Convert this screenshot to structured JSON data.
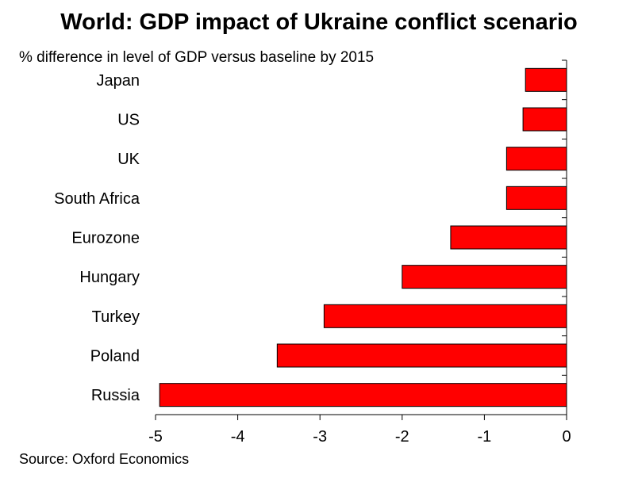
{
  "title": "World: GDP impact of Ukraine conflict scenario",
  "subtitle": "% difference in level of GDP versus baseline by 2015",
  "source": "Source: Oxford Economics",
  "colors": {
    "bar": "#ff0000",
    "bar_stroke": "#000000"
  },
  "chart_data": {
    "type": "bar",
    "orientation": "horizontal",
    "title": "World: GDP impact of Ukraine conflict scenario",
    "subtitle": "% difference in level of GDP versus baseline by 2015",
    "categories": [
      "Japan",
      "US",
      "UK",
      "South Africa",
      "Eurozone",
      "Hungary",
      "Turkey",
      "Poland",
      "Russia"
    ],
    "values": [
      -0.5,
      -0.53,
      -0.73,
      -0.73,
      -1.41,
      -2.0,
      -2.95,
      -3.52,
      -4.95
    ],
    "xlim": [
      -5,
      0
    ],
    "xticks": [
      "-5",
      "-4",
      "-3",
      "-2",
      "-1",
      "0"
    ],
    "grid": false,
    "legend": "none"
  }
}
